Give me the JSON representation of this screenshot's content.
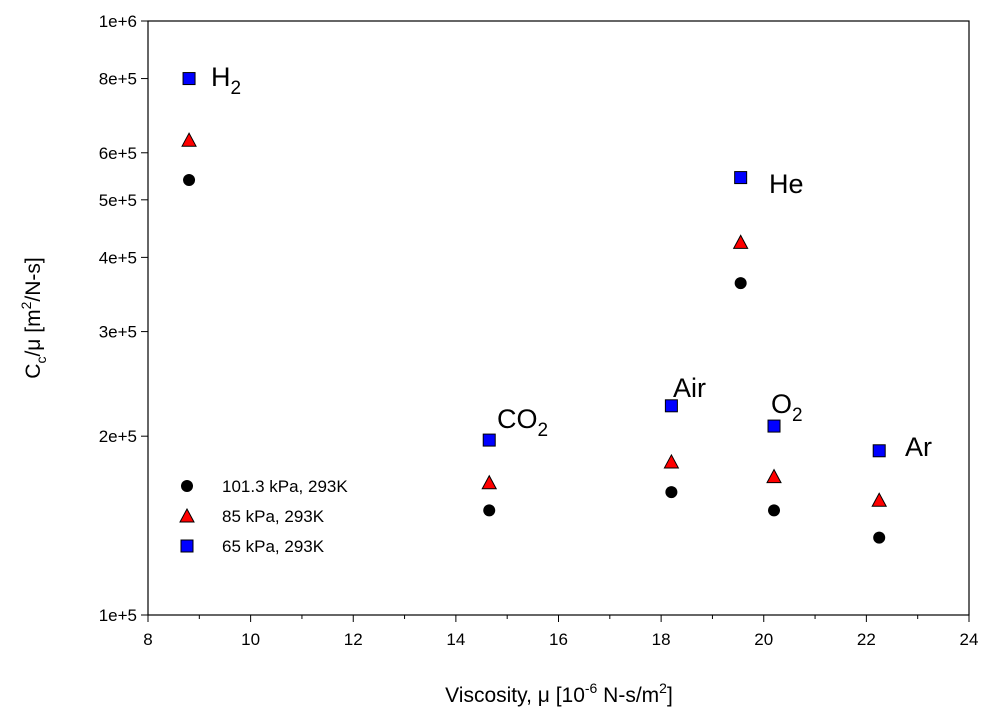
{
  "chart_data": {
    "type": "scatter",
    "xlabel": {
      "main": "Viscosity, μ [10",
      "sup": "-6",
      "rest": " N-s/m",
      "sup2": "2",
      "end": "]"
    },
    "ylabel": {
      "main": "C",
      "sub": "c",
      "mid": "/μ [m",
      "sup": "2",
      "end": "/N-s]"
    },
    "xlim": [
      8,
      24
    ],
    "ylim": [
      100000,
      1000000
    ],
    "yscale": "log",
    "x_ticks": [
      "8",
      "10",
      "12",
      "14",
      "16",
      "18",
      "20",
      "22",
      "24"
    ],
    "y_ticks": [
      {
        "value": 100000,
        "label": "1e+5"
      },
      {
        "value": 200000,
        "label": "2e+5"
      },
      {
        "value": 300000,
        "label": "3e+5"
      },
      {
        "value": 400000,
        "label": "4e+5"
      },
      {
        "value": 500000,
        "label": "5e+5"
      },
      {
        "value": 600000,
        "label": "6e+5"
      },
      {
        "value": 800000,
        "label": "8e+5"
      },
      {
        "value": 1000000,
        "label": "1e+6"
      }
    ],
    "grid": false,
    "legend_position": "lower-left",
    "series": [
      {
        "name": "101.3 kPa, 293K",
        "marker": "circle",
        "color": "#000000",
        "points": [
          {
            "x": 8.8,
            "y": 540000
          },
          {
            "x": 14.65,
            "y": 150000
          },
          {
            "x": 18.2,
            "y": 161000
          },
          {
            "x": 19.55,
            "y": 362000
          },
          {
            "x": 20.2,
            "y": 150000
          },
          {
            "x": 22.25,
            "y": 135000
          }
        ]
      },
      {
        "name": "85 kPa, 293K",
        "marker": "triangle",
        "color": "#ff0000",
        "points": [
          {
            "x": 8.8,
            "y": 630000
          },
          {
            "x": 14.65,
            "y": 167000
          },
          {
            "x": 18.2,
            "y": 181000
          },
          {
            "x": 19.55,
            "y": 424000
          },
          {
            "x": 20.2,
            "y": 171000
          },
          {
            "x": 22.25,
            "y": 156000
          }
        ]
      },
      {
        "name": "65 kPa, 293K",
        "marker": "square",
        "color": "#0000ff",
        "points": [
          {
            "x": 8.8,
            "y": 800000
          },
          {
            "x": 14.65,
            "y": 197000
          },
          {
            "x": 18.2,
            "y": 225000
          },
          {
            "x": 19.55,
            "y": 545000
          },
          {
            "x": 20.2,
            "y": 208000
          },
          {
            "x": 22.25,
            "y": 189000
          }
        ]
      }
    ],
    "annotations": [
      {
        "name": "h2",
        "main": "H",
        "sub": "2"
      },
      {
        "name": "co2",
        "main": "CO",
        "sub": "2"
      },
      {
        "name": "air",
        "main": "Air",
        "sub": ""
      },
      {
        "name": "he",
        "main": "He",
        "sub": ""
      },
      {
        "name": "o2",
        "main": "O",
        "sub": "2"
      },
      {
        "name": "ar",
        "main": "Ar",
        "sub": ""
      }
    ]
  }
}
